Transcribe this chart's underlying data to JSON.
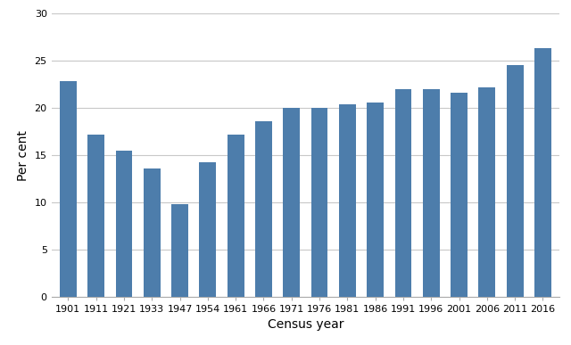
{
  "categories": [
    "1901",
    "1911",
    "1921",
    "1933",
    "1947",
    "1954",
    "1961",
    "1966",
    "1971",
    "1976",
    "1981",
    "1986",
    "1991",
    "1996",
    "2001",
    "2006",
    "2011",
    "2016"
  ],
  "values": [
    22.9,
    17.2,
    15.5,
    13.6,
    9.8,
    14.3,
    17.2,
    18.6,
    20.0,
    20.0,
    20.4,
    20.6,
    22.0,
    22.0,
    21.6,
    22.2,
    24.6,
    26.4
  ],
  "bar_color": "#4d7dab",
  "xlabel": "Census year",
  "ylabel": "Per cent",
  "ylim": [
    0,
    30
  ],
  "yticks": [
    0,
    5,
    10,
    15,
    20,
    25,
    30
  ],
  "bar_width": 0.6,
  "grid_color": "#c8c8c8",
  "background_color": "#ffffff",
  "tick_label_fontsize": 8,
  "axis_label_fontsize": 10
}
